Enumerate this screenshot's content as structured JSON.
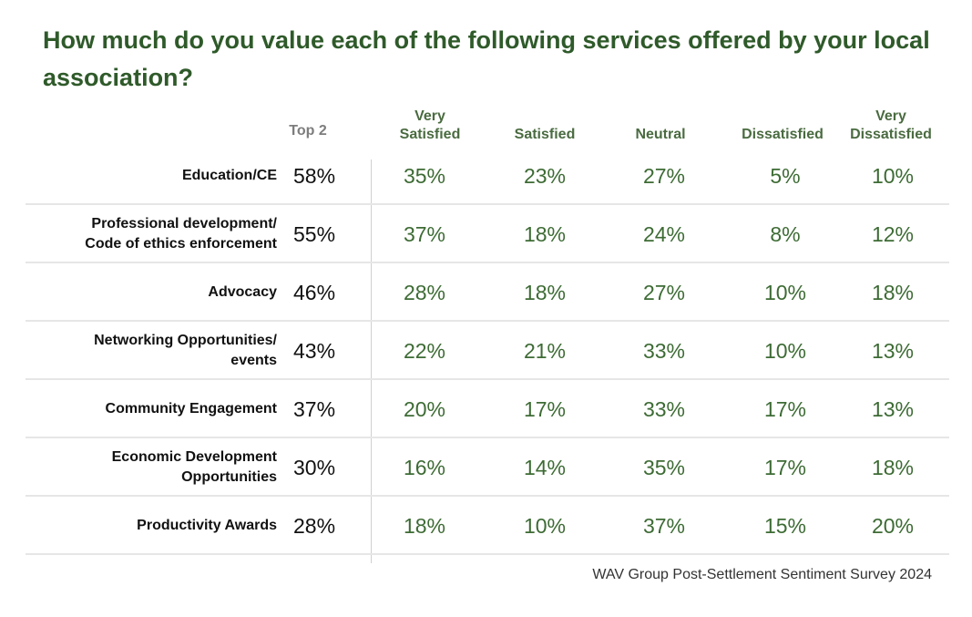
{
  "title": "How much do you value each of the following services offered by your local association?",
  "source": "WAV Group Post-Settlement Sentiment Survey 2024",
  "colors": {
    "title": "#2f5a2a",
    "values": "#3d6b34",
    "top2": "#111111",
    "header": "#4a6b40"
  },
  "chart_data": {
    "type": "table",
    "columns": [
      "Top 2",
      "Very\nSatisfied",
      "Satisfied",
      "Neutral",
      "Dissatisfied",
      "Very\nDissatisfied"
    ],
    "rows": [
      {
        "label": "Education/CE",
        "top2": "58%",
        "values": [
          "35%",
          "23%",
          "27%",
          "5%",
          "10%"
        ]
      },
      {
        "label": "Professional development/\nCode of ethics enforcement",
        "top2": "55%",
        "values": [
          "37%",
          "18%",
          "24%",
          "8%",
          "12%"
        ]
      },
      {
        "label": "Advocacy",
        "top2": "46%",
        "values": [
          "28%",
          "18%",
          "27%",
          "10%",
          "18%"
        ]
      },
      {
        "label": "Networking Opportunities/\nevents",
        "top2": "43%",
        "values": [
          "22%",
          "21%",
          "33%",
          "10%",
          "13%"
        ]
      },
      {
        "label": "Community Engagement",
        "top2": "37%",
        "values": [
          "20%",
          "17%",
          "33%",
          "17%",
          "13%"
        ]
      },
      {
        "label": "Economic Development\nOpportunities",
        "top2": "30%",
        "values": [
          "16%",
          "14%",
          "35%",
          "17%",
          "18%"
        ]
      },
      {
        "label": "Productivity Awards",
        "top2": "28%",
        "values": [
          "18%",
          "10%",
          "37%",
          "15%",
          "20%"
        ]
      }
    ]
  }
}
